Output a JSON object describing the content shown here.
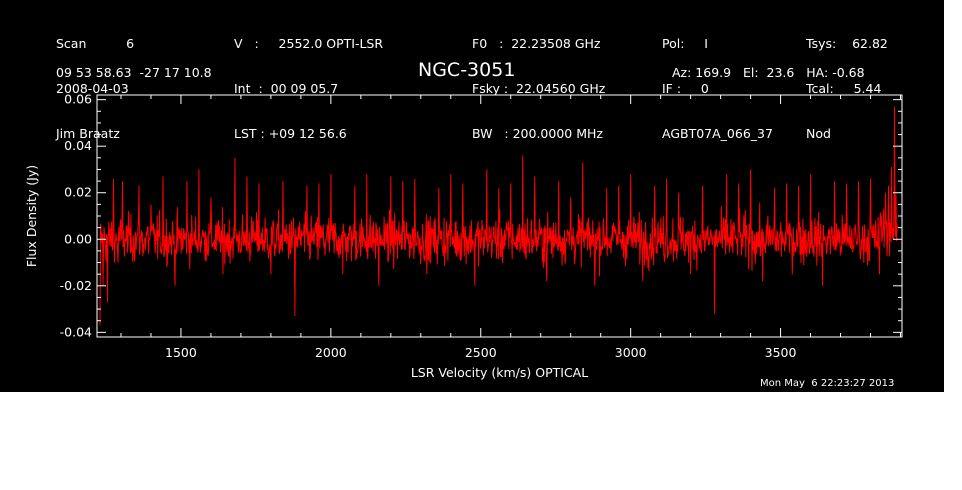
{
  "header": {
    "col1": [
      "Scan          6",
      "2008-04-03",
      "Jim Braatz"
    ],
    "col2": [
      "V   :     2552.0 OPTI-LSR",
      "Int  :  00 09 05.7",
      "LST : +09 12 56.6"
    ],
    "col3": [
      "F0   :  22.23508 GHz",
      "Fsky :  22.04560 GHz",
      "BW   : 200.0000 MHz"
    ],
    "col4": [
      "Pol:     I",
      "IF :     0",
      "AGBT07A_066_37"
    ],
    "col5": [
      "Tsys:    62.82",
      "Tcal:     5.44",
      "Nod"
    ],
    "coords": "09 53 58.63  -27 17 10.8",
    "source": "NGC-3051",
    "azelha": "Az: 169.9   El:  23.6   HA: -0.68"
  },
  "timestamp": "Mon May  6 22:23:27 2013",
  "colors": {
    "background": "#000000",
    "axes": "#ffffff",
    "trace": "#ff0000"
  },
  "chart_data": {
    "type": "line",
    "xlabel": "LSR Velocity (km/s) OPTICAL",
    "ylabel": "Flux Density (Jy)",
    "xlim": [
      1220,
      3905
    ],
    "ylim": [
      -0.042,
      0.062
    ],
    "xticks": [
      1500,
      2000,
      2500,
      3000,
      3500
    ],
    "xtick_labels": [
      "1500",
      "2000",
      "2500",
      "3000",
      "3500"
    ],
    "yticks": [
      -0.04,
      -0.02,
      0.0,
      0.02,
      0.04,
      0.06
    ],
    "ytick_labels": [
      "-0.04",
      "-0.02",
      "0.00",
      "0.02",
      "0.04",
      "0.06"
    ],
    "series": [
      {
        "x": [
          1230,
          1240,
          1255,
          1275,
          1290,
          1305,
          1330,
          1360,
          1400,
          1440,
          1480,
          1520,
          1560,
          1600,
          1640,
          1680,
          1720,
          1760,
          1800,
          1840,
          1880,
          1920,
          1960,
          2000,
          2040,
          2080,
          2120,
          2160,
          2200,
          2240,
          2280,
          2320,
          2360,
          2400,
          2440,
          2480,
          2520,
          2560,
          2600,
          2640,
          2680,
          2720,
          2760,
          2800,
          2840,
          2880,
          2920,
          2960,
          3000,
          3040,
          3080,
          3120,
          3160,
          3200,
          3240,
          3280,
          3320,
          3360,
          3400,
          3440,
          3480,
          3520,
          3560,
          3600,
          3640,
          3680,
          3720,
          3760,
          3800,
          3830,
          3850,
          3860,
          3870,
          3880,
          3890
        ],
        "y": [
          -0.037,
          -0.02,
          -0.027,
          0.026,
          -0.01,
          0.025,
          0.005,
          0.023,
          0.015,
          0.027,
          -0.02,
          0.025,
          0.03,
          0.018,
          -0.015,
          0.035,
          0.027,
          0.024,
          -0.015,
          0.025,
          -0.033,
          0.023,
          0.024,
          0.028,
          -0.015,
          0.023,
          0.028,
          -0.02,
          0.027,
          0.025,
          0.026,
          -0.015,
          0.022,
          0.028,
          0.024,
          -0.02,
          0.03,
          0.022,
          0.024,
          0.036,
          0.027,
          -0.018,
          0.025,
          0.018,
          0.033,
          -0.02,
          0.022,
          0.023,
          0.028,
          -0.018,
          0.023,
          0.026,
          0.02,
          -0.015,
          0.023,
          -0.032,
          0.028,
          0.024,
          0.03,
          -0.018,
          0.022,
          0.024,
          0.023,
          0.028,
          -0.02,
          0.025,
          0.024,
          0.025,
          0.026,
          -0.015,
          0.02,
          0.023,
          0.031,
          0.057,
          0.005
        ]
      }
    ]
  }
}
